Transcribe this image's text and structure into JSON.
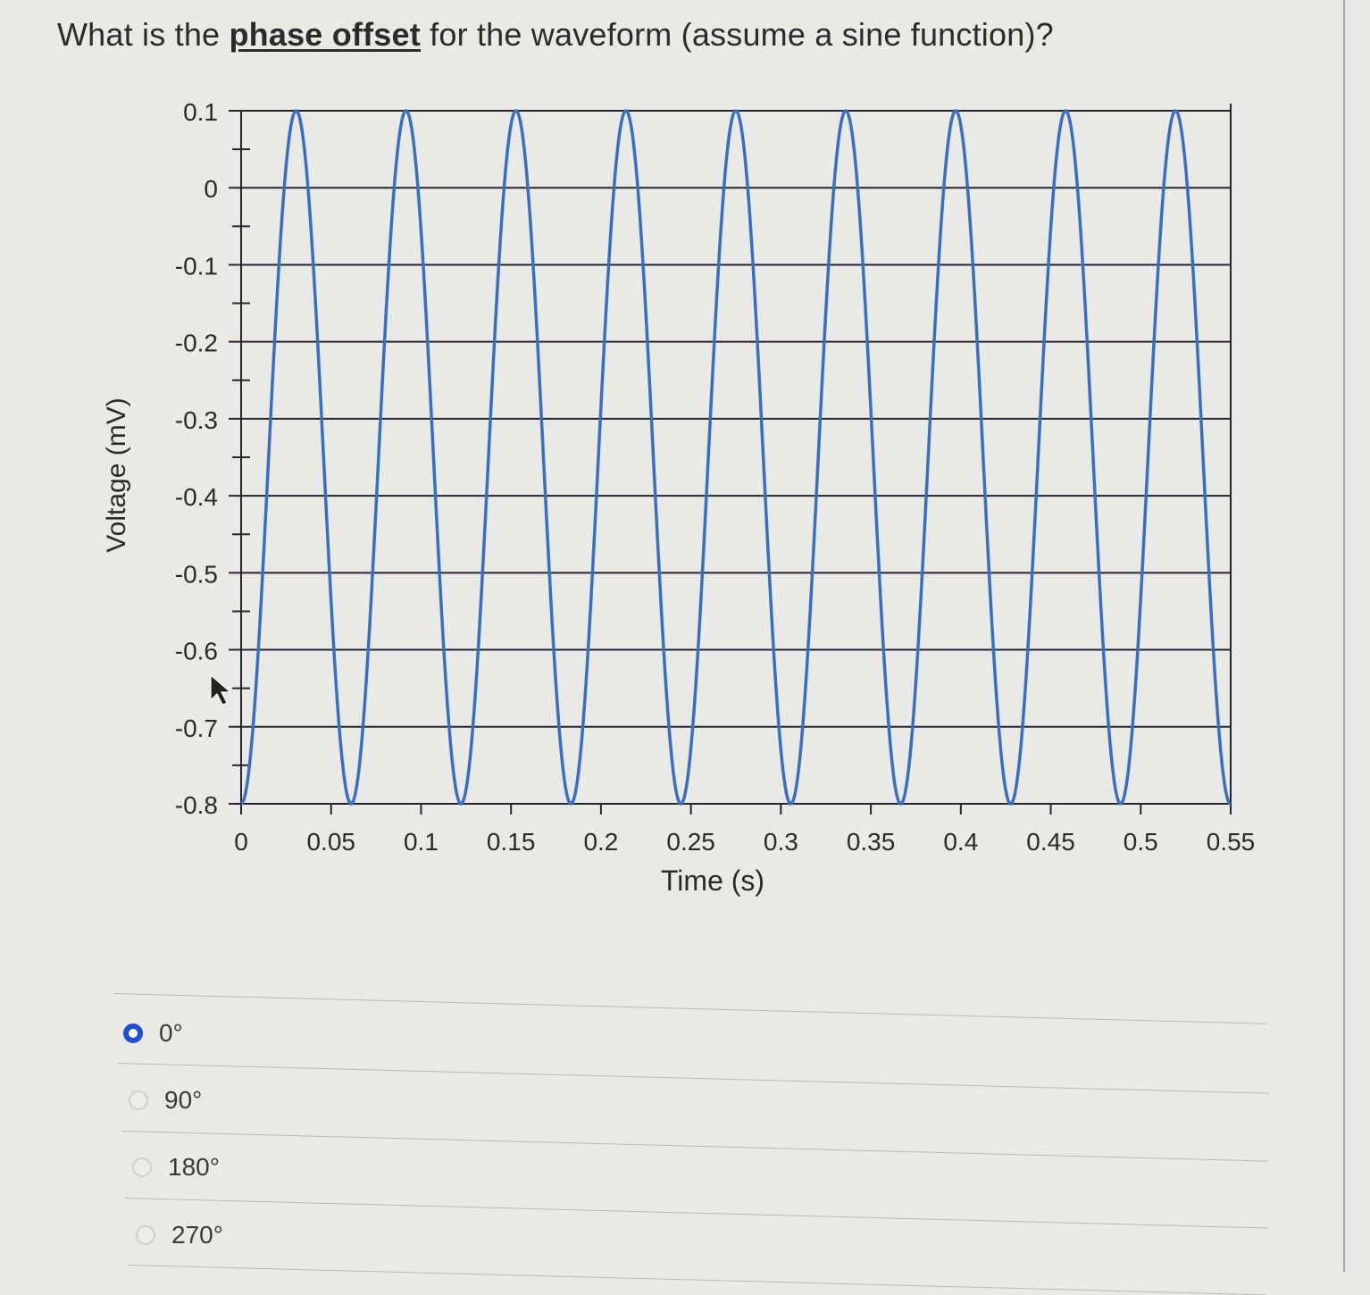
{
  "question": {
    "prefix": "What is the ",
    "emphasis": "phase offset",
    "suffix": " for the waveform (assume a sine function)?"
  },
  "chart_data": {
    "type": "line",
    "title": "",
    "xlabel": "Time (s)",
    "ylabel": "Voltage (mV)",
    "xlim": [
      0,
      0.55
    ],
    "ylim": [
      -0.8,
      0.1
    ],
    "x_ticks": [
      "0",
      "0.05",
      "0.1",
      "0.15",
      "0.2",
      "0.25",
      "0.3",
      "0.35",
      "0.4",
      "0.45",
      "0.5",
      "0.55"
    ],
    "y_ticks": [
      "0.1",
      "0",
      "-0.1",
      "-0.2",
      "-0.3",
      "-0.4",
      "-0.5",
      "-0.6",
      "-0.7",
      "-0.8"
    ],
    "grid": "horizontal major gridlines",
    "legend": "none",
    "series": [
      {
        "name": "Voltage",
        "color": "#3a6fc0",
        "model": "V(t) = -0.35 + 0.45*sin(2*pi*f*t - 90deg)",
        "amplitude_mV": 0.45,
        "dc_offset_mV": -0.35,
        "max_mV": 0.1,
        "min_mV": -0.8,
        "period_s": 0.0611,
        "frequency_hz": 16.36,
        "start_value_mV": -0.8,
        "peak_times_s": [
          0.031,
          0.092,
          0.153,
          0.214,
          0.275,
          0.336,
          0.397,
          0.458,
          0.519
        ],
        "trough_times_s": [
          0.0,
          0.061,
          0.122,
          0.183,
          0.244,
          0.305,
          0.367,
          0.428,
          0.489,
          0.55
        ]
      }
    ]
  },
  "answer_options": [
    {
      "label": "0°",
      "selected": true
    },
    {
      "label": "90°",
      "selected": false
    },
    {
      "label": "180°",
      "selected": false
    },
    {
      "label": "270°",
      "selected": false
    }
  ],
  "colors": {
    "selected_radio": "#1f4fd6",
    "waveform": "#3a6fc0",
    "gridline": "#2a2230"
  }
}
